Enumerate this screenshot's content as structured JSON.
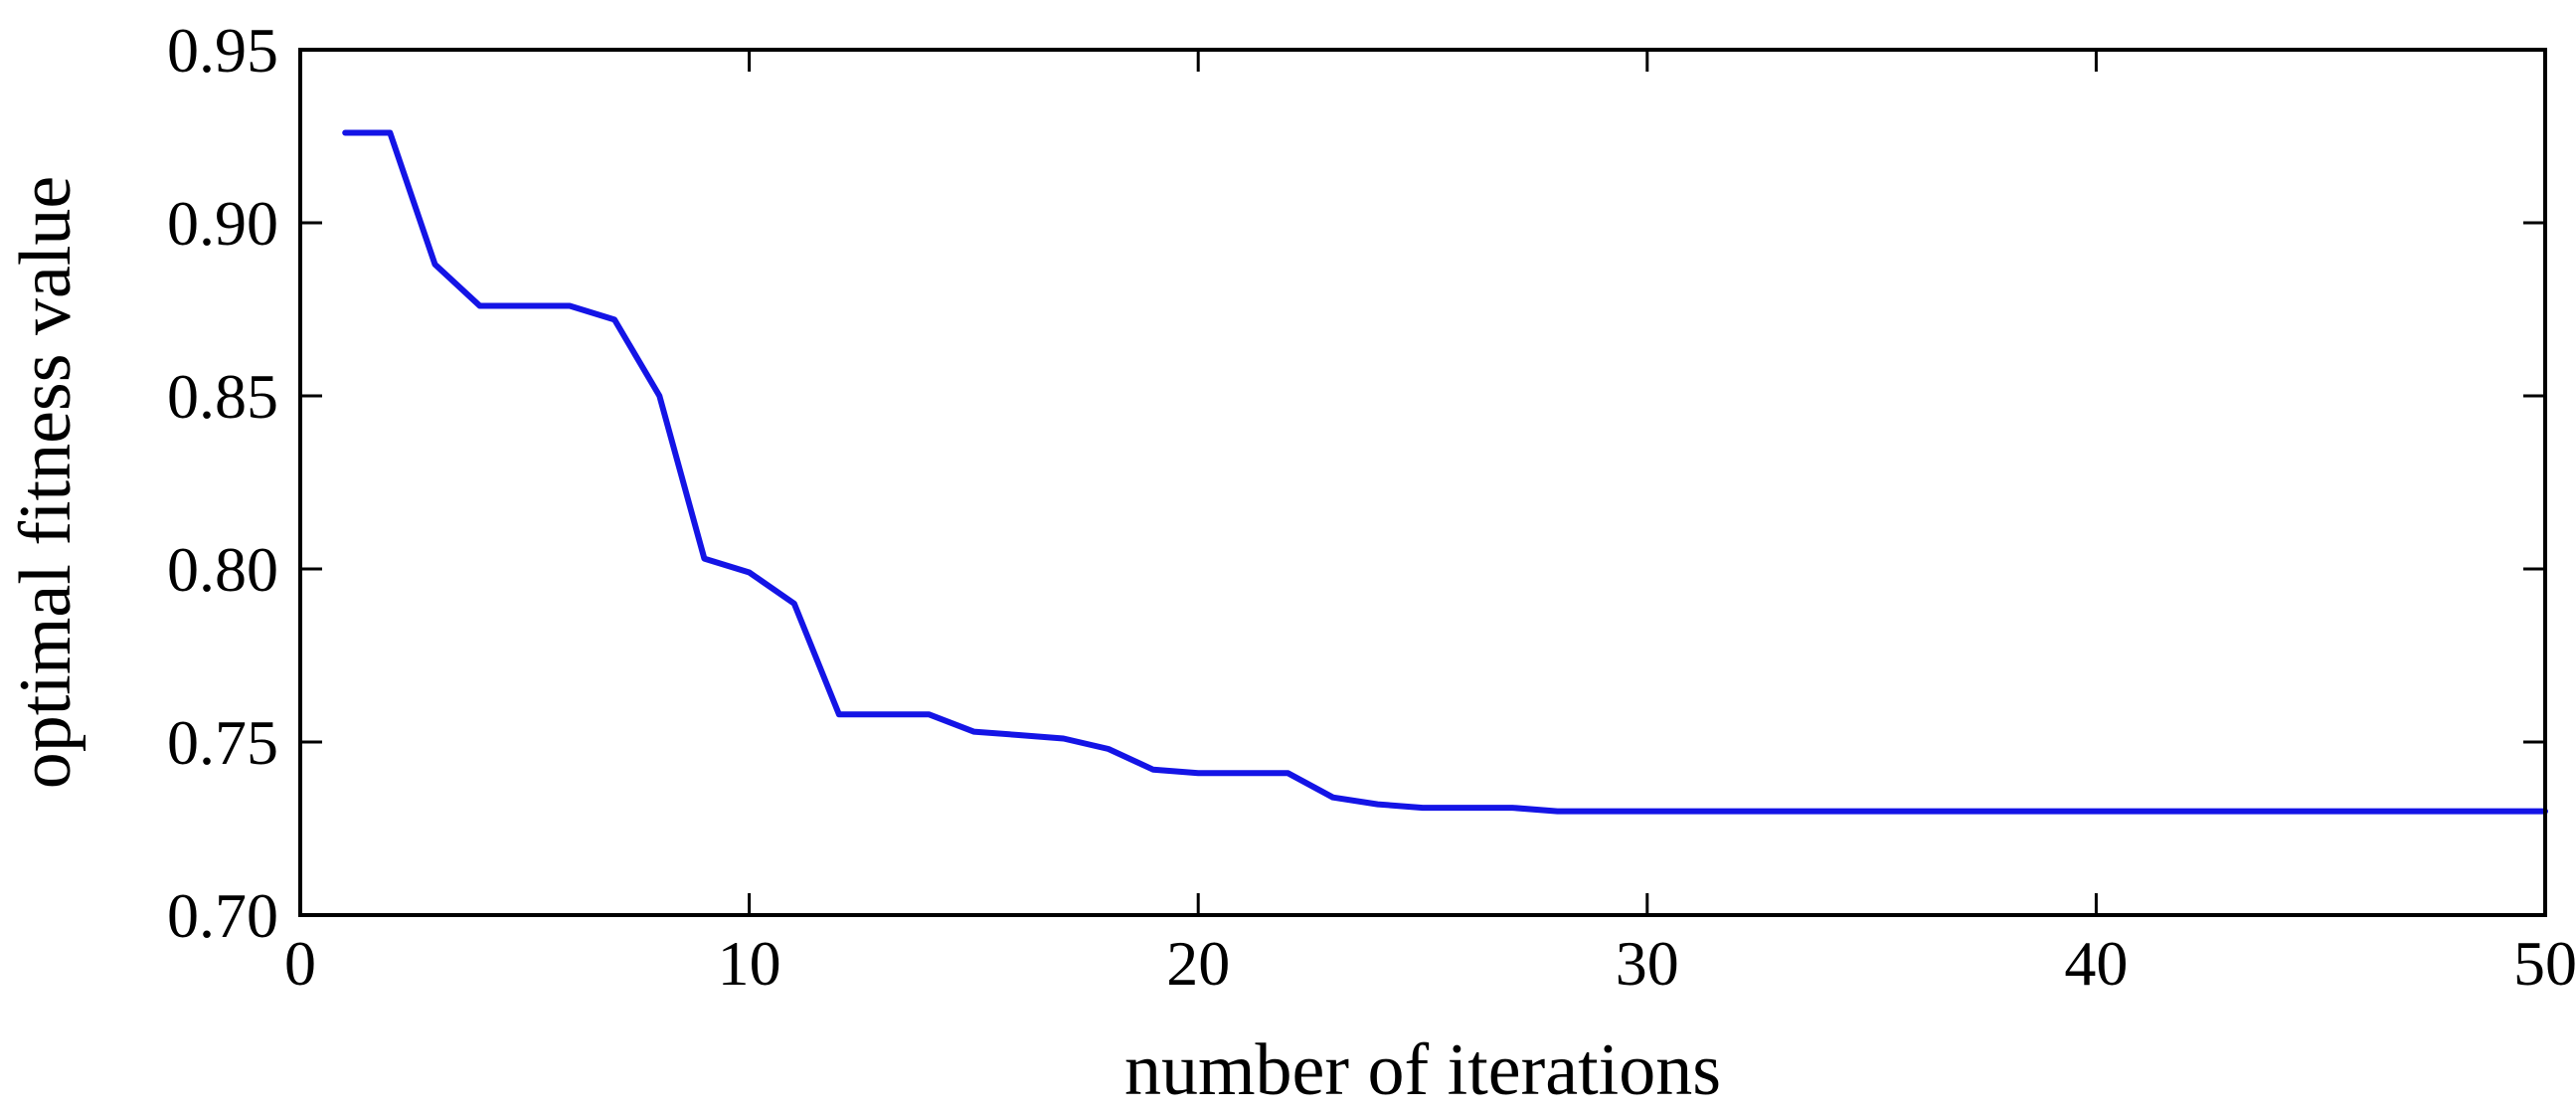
{
  "chart_data": {
    "type": "line",
    "title": "",
    "xlabel": "number of iterations",
    "ylabel": "optimal fitness value",
    "xlim": [
      0,
      50
    ],
    "ylim": [
      0.7,
      0.95
    ],
    "xticks": [
      0,
      10,
      20,
      30,
      40,
      50
    ],
    "xtick_labels": [
      "0",
      "10",
      "20",
      "30",
      "40",
      "50"
    ],
    "yticks": [
      0.7,
      0.75,
      0.8,
      0.85,
      0.9,
      0.95
    ],
    "ytick_labels": [
      "0.70",
      "0.75",
      "0.80",
      "0.85",
      "0.90",
      "0.95"
    ],
    "grid": false,
    "legend": "none",
    "series": [
      {
        "color": "#1414e6",
        "x": [
          1,
          2,
          3,
          4,
          5,
          6,
          7,
          8,
          9,
          10,
          11,
          12,
          13,
          14,
          15,
          16,
          17,
          18,
          19,
          20,
          21,
          22,
          23,
          24,
          25,
          26,
          27,
          28,
          29,
          30,
          31,
          32,
          33,
          34,
          35,
          36,
          37,
          38,
          39,
          40,
          41,
          42,
          43,
          44,
          45,
          46,
          47,
          48,
          49,
          50
        ],
        "y": [
          0.926,
          0.926,
          0.888,
          0.876,
          0.876,
          0.876,
          0.872,
          0.85,
          0.803,
          0.799,
          0.79,
          0.758,
          0.758,
          0.758,
          0.753,
          0.752,
          0.751,
          0.748,
          0.742,
          0.741,
          0.741,
          0.741,
          0.734,
          0.732,
          0.731,
          0.731,
          0.731,
          0.73,
          0.73,
          0.73,
          0.73,
          0.73,
          0.73,
          0.73,
          0.73,
          0.73,
          0.73,
          0.73,
          0.73,
          0.73,
          0.73,
          0.73,
          0.73,
          0.73,
          0.73,
          0.73,
          0.73,
          0.73,
          0.73,
          0.73
        ]
      }
    ]
  }
}
